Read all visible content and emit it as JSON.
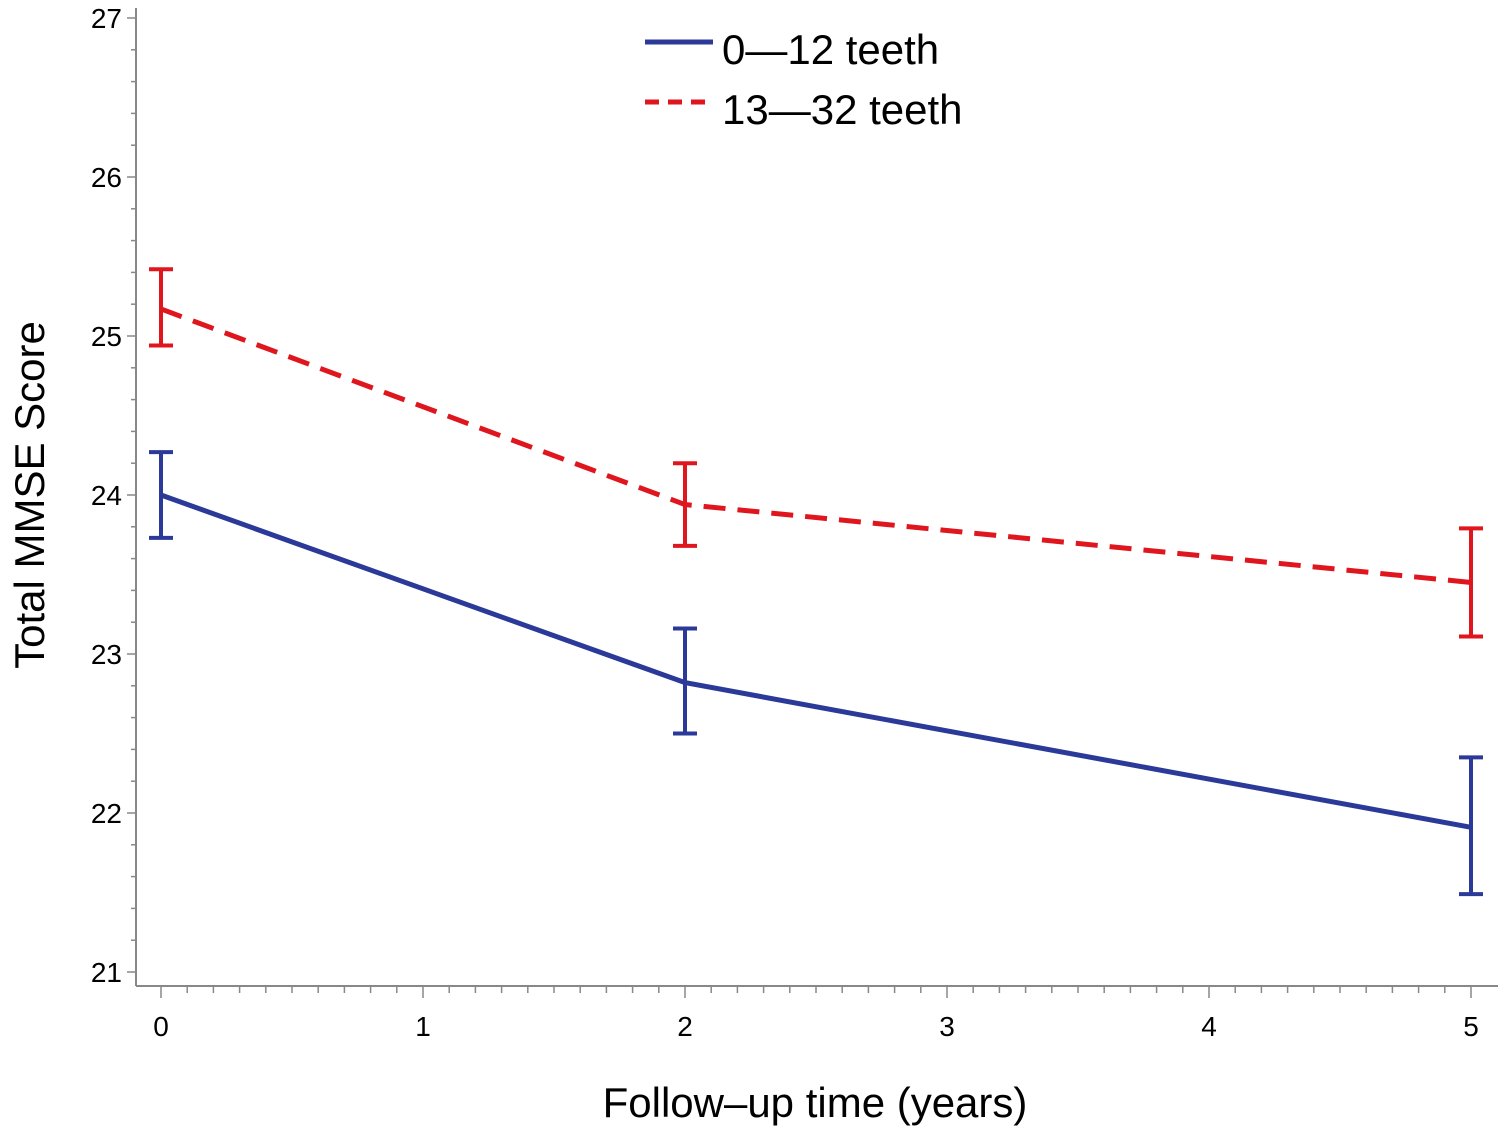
{
  "chart_data": {
    "type": "line",
    "title": "",
    "xlabel": "Follow–up  time  (years)",
    "ylabel": "Total MMSE Score",
    "xlim": [
      0,
      5
    ],
    "ylim": [
      21,
      27
    ],
    "x_ticks": [
      "0",
      "1",
      "2",
      "3",
      "4",
      "5"
    ],
    "y_ticks": [
      "21",
      "22",
      "23",
      "24",
      "25",
      "26",
      "27"
    ],
    "grid": false,
    "legend_position": "top-center",
    "series": [
      {
        "name": "0—12  teeth",
        "color": "#2b3a98",
        "dash": "solid",
        "x": [
          0,
          2,
          5
        ],
        "y": [
          24.0,
          22.82,
          21.91
        ],
        "lower": [
          23.73,
          22.5,
          21.49
        ],
        "upper": [
          24.27,
          23.16,
          22.35
        ]
      },
      {
        "name": "13—32  teeth",
        "color": "#e0161e",
        "dash": "dashed",
        "x": [
          0,
          2,
          5
        ],
        "y": [
          25.17,
          23.94,
          23.45
        ],
        "lower": [
          24.94,
          23.68,
          23.11
        ],
        "upper": [
          25.42,
          24.2,
          23.79
        ]
      }
    ]
  }
}
